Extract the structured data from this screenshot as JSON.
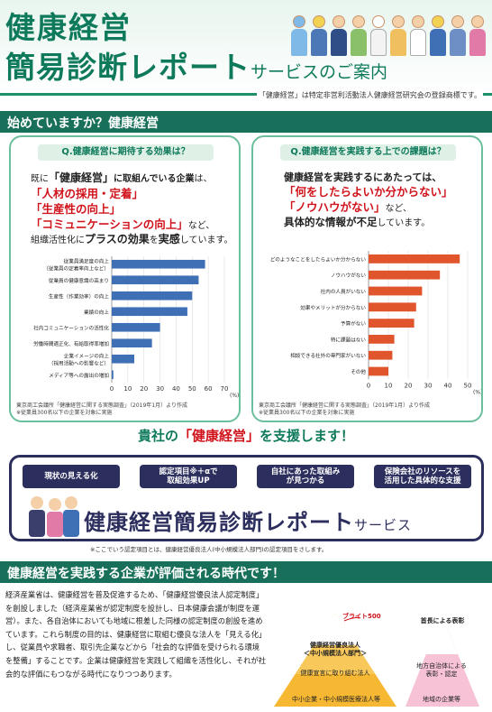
{
  "header": {
    "title_line1": "健康経営",
    "title_line2_main": "簡易診断レポート",
    "title_line2_sub": "サービスのご案内",
    "trademark": "「健康経営」は特定非営利活動法人健康経営研究会の登録商標です。"
  },
  "section1": {
    "title": "始めていますか？健康経営"
  },
  "left_panel": {
    "question": "Q.健康経営に期待する効果は？",
    "intro_1": "既に",
    "intro_2": "「健康経営」",
    "intro_3": "に取組んでいる企業",
    "intro_4": "は、",
    "item1": "「人材の採用・定着」",
    "item2": "「生産性の向上」",
    "item3": "「コミュニケーションの向上」",
    "item3_suffix": "など、",
    "outro_1": "組織活性化に",
    "outro_2": "プラスの効果",
    "outro_3": "を",
    "outro_4": "実感",
    "outro_5": "しています。",
    "source1": "東京商工会議所「健康経営に関する実態調査」（2019年1月）より作成",
    "source2": "※従業員300名以下の企業を対象に実施",
    "unit": "(%)"
  },
  "right_panel": {
    "question": "Q.健康経営を実践する上での課題は？",
    "intro_1": "健康経営を実践するにあたっては、",
    "item1": "「何をしたらよいか分からない」",
    "item2": "「ノウハウがない」",
    "item2_suffix": "など、",
    "outro_1": "具体的な情報が不足",
    "outro_2": "しています。",
    "source1": "東京商工会議所「健康経営に関する実態調査」（2019年1月）より作成",
    "source2": "※従業員300名以下の企業を対象に実施",
    "unit": "(%)"
  },
  "support": {
    "prefix": "貴社の",
    "highlight": "「健康経営」",
    "suffix": "を支援します！"
  },
  "service": {
    "pills": [
      "現状の見える化",
      "認定項目※＋αで\n取組効果UP",
      "自社にあった取組み\nが見つかる",
      "保険会社のリソースを\n活用した具体的な支援"
    ],
    "title_main": "健康経営簡易診断レポート",
    "title_sub": "サービス",
    "footnote": "※ここでいう認定項目とは、健康経営優良法人(中小規模法人部門)の認定項目をさします。"
  },
  "section2": {
    "title": "健康経営を実践する企業が評価される時代です！",
    "body": "経済産業省は、健康経営を普及促進するため、「健康経営優良法人認定制度」を創設しました（経済産業省が認定制度を設計し、日本健康会議が制度を運営）。また、各自治体においても地域に根差した同様の認定制度の創設を進めています。これら制度の目的は、健康経営に取組む優良な法人を「見える化」し、従業員や求職者、取引先企業などから「社会的な評価を受けられる環境を整備」することです。企業は健康経営を実践して組織を活性化し、それが社会的な評価にもつながる時代になりつつあります。"
  },
  "pyramid_left": {
    "top_label": "ブライト500",
    "title_1": "健康経営優良法人",
    "title_2": "＜中小規模法人部門＞",
    "mid": "健康宣言に取り組む法人",
    "bottom": "中小企業・中小規模医療法人等"
  },
  "pyramid_right": {
    "title": "首長による表彰",
    "mid_1": "地方自治体による",
    "mid_2": "表彰・認定",
    "bottom": "地域の企業等"
  },
  "chart_data": [
    {
      "type": "bar",
      "orientation": "horizontal",
      "categories": [
        "従業員満足度の向上\n（従業員の定着率向上など）",
        "従業員の健康意識の高まり",
        "生産性（作業効率）の向上",
        "業績の向上",
        "社内コミュニケーションの活性化",
        "労働時間適正化、有給取得率増加",
        "企業イメージの向上\n（採用活動への影響など）",
        "メディア等への露出の増加"
      ],
      "values": [
        58,
        54,
        50,
        47,
        30,
        25,
        14,
        1
      ],
      "xlim": [
        0,
        70
      ],
      "xticks": [
        0,
        10,
        20,
        30,
        40,
        50,
        60,
        70
      ],
      "color": "#3f6fb5"
    },
    {
      "type": "bar",
      "orientation": "horizontal",
      "categories": [
        "どのようなことをしたらよいか分からない",
        "ノウハウがない",
        "社内の人員がいない",
        "効果やメリットが分からない",
        "予算がない",
        "特に課題はない",
        "相談できる社外の専門家がいない",
        "その他"
      ],
      "values": [
        46,
        36,
        27,
        24,
        23,
        13,
        12,
        10
      ],
      "xlim": [
        0,
        50
      ],
      "xticks": [
        0,
        10,
        20,
        30,
        40,
        50
      ],
      "color": "#e0552c"
    }
  ]
}
